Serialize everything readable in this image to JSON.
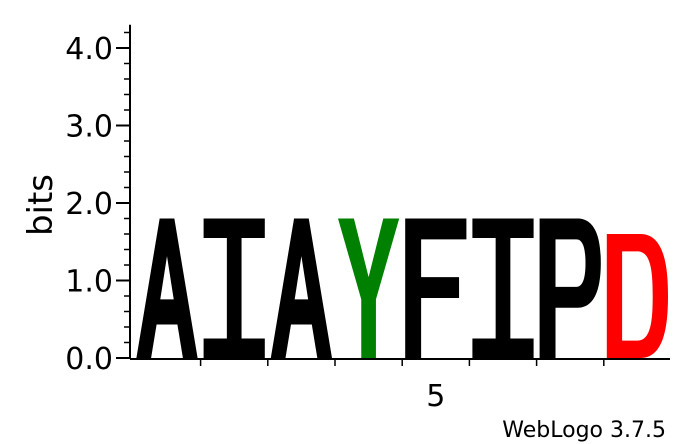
{
  "chart_data": {
    "type": "sequence-logo",
    "ylabel": "bits",
    "ylim": [
      0,
      4.3
    ],
    "y_tick_labels": [
      "0.0",
      "1.0",
      "2.0",
      "3.0",
      "4.0"
    ],
    "y_tick_values": [
      0,
      1,
      2,
      3,
      4
    ],
    "x_tick_labels": [
      "5"
    ],
    "x_tick_positions": [
      5
    ],
    "positions": [
      {
        "position": 1,
        "letter": "A",
        "bits": 1.8,
        "color": "#000000"
      },
      {
        "position": 2,
        "letter": "I",
        "bits": 1.8,
        "color": "#000000"
      },
      {
        "position": 3,
        "letter": "A",
        "bits": 1.8,
        "color": "#000000"
      },
      {
        "position": 4,
        "letter": "Y",
        "bits": 1.8,
        "color": "#008000"
      },
      {
        "position": 5,
        "letter": "F",
        "bits": 1.8,
        "color": "#000000"
      },
      {
        "position": 6,
        "letter": "I",
        "bits": 1.8,
        "color": "#000000"
      },
      {
        "position": 7,
        "letter": "P",
        "bits": 1.8,
        "color": "#000000"
      },
      {
        "position": 8,
        "letter": "D",
        "bits": 1.6,
        "color": "#ff0000"
      }
    ],
    "credit": "WebLogo 3.7.5"
  }
}
